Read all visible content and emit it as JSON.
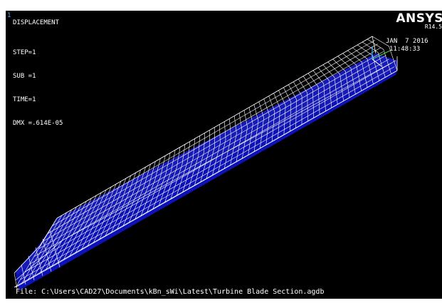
{
  "window": {
    "number": "1"
  },
  "plot": {
    "title": "DISPLACEMENT",
    "stats": [
      "STEP=1",
      "SUB =1",
      "TIME=1",
      "DMX =.614E-05"
    ]
  },
  "brand": {
    "name": "ANSYS",
    "version": "R14.5"
  },
  "timestamp": {
    "date": "JAN  7 2016",
    "time": "11:48:33"
  },
  "file": {
    "label": "File: C:\\Users\\CAD27\\Documents\\kBn_sWi\\Latest\\Turbine Blade Section.agdb"
  },
  "colors": {
    "background": "#000000",
    "mesh_fill": "#1a1fd6",
    "mesh_edge": "#ffffff",
    "window_number": "#4fa8ff"
  }
}
